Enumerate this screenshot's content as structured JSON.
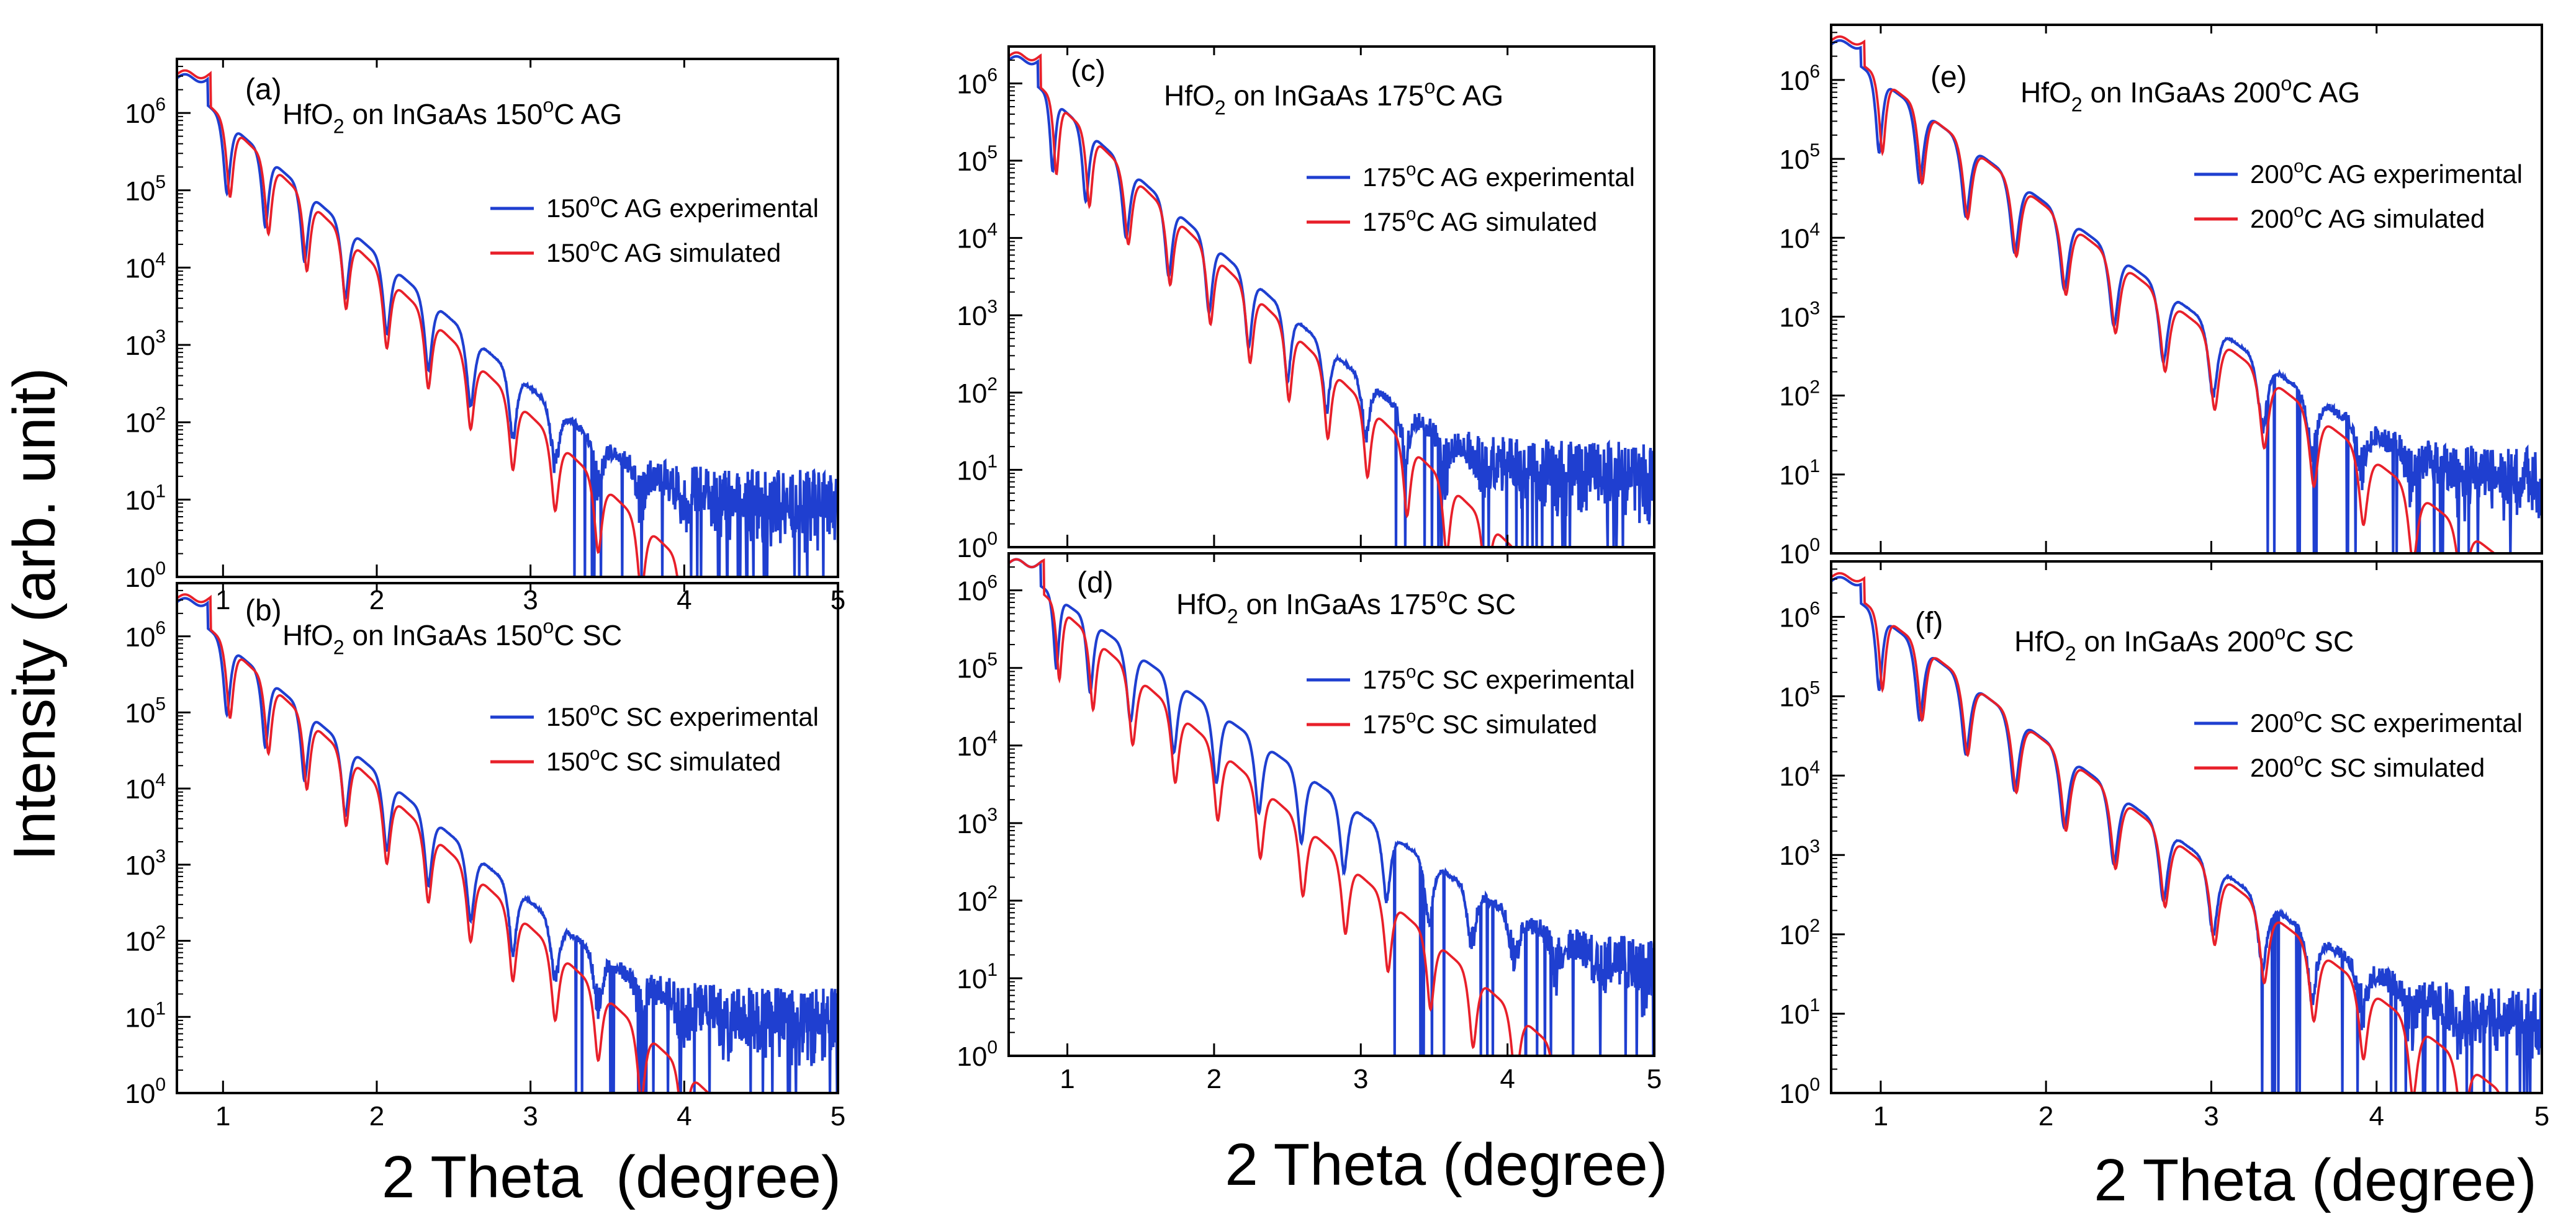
{
  "figure": {
    "ylabel": "Intensity (arb. unit)",
    "xlabel": "2 Theta  (degree)",
    "xlabel_mid": "2 Theta (degree)",
    "xlabel_right": "2 Theta (degree)",
    "colors": {
      "experimental": "#1f3fd0",
      "simulated": "#e8202a",
      "axis": "#000000"
    }
  },
  "chart_data": [
    {
      "id": "a",
      "type": "line",
      "panel_label": "(a)",
      "title": {
        "pre": "HfO",
        "sub": "2",
        "mid": " on InGaAs 150",
        "sup": "o",
        "post": "C AG"
      },
      "xlim": [
        0.7,
        5
      ],
      "ylim": [
        1,
        5000000
      ],
      "yscale": "log",
      "x_ticks": [
        "1",
        "2",
        "3",
        "4",
        "5"
      ],
      "y_ticks": [
        "10^0",
        "10^1",
        "10^2",
        "10^3",
        "10^4",
        "10^5",
        "10^6"
      ],
      "series": [
        {
          "name": {
            "pre": "150",
            "sup": "o",
            "post": "C AG experimental"
          },
          "color": "#1f3fd0",
          "peak_x": [
            0.9,
            1.15,
            1.4,
            1.66,
            1.93,
            2.2,
            2.47,
            2.75,
            3.02,
            3.3,
            3.58,
            3.86,
            4.13,
            4.41,
            4.69,
            4.96
          ],
          "start_exp": 6.45,
          "slope": 1.75,
          "noise_floor": 16
        },
        {
          "name": {
            "pre": "150",
            "sup": "o",
            "post": "C AG simulated"
          },
          "color": "#e8202a",
          "peak_x": [
            0.92,
            1.17,
            1.42,
            1.67,
            1.93,
            2.2,
            2.47,
            2.75,
            3.02,
            3.3,
            3.58,
            3.86,
            4.13,
            4.41,
            4.69,
            4.96
          ],
          "start_exp": 6.5,
          "slope": 1.92
        }
      ]
    },
    {
      "id": "b",
      "type": "line",
      "panel_label": "(b)",
      "title": {
        "pre": "HfO",
        "sub": "2",
        "mid": " on InGaAs 150",
        "sup": "o",
        "post": "C SC"
      },
      "xlim": [
        0.7,
        5
      ],
      "ylim": [
        1,
        5000000
      ],
      "yscale": "log",
      "x_ticks": [
        "1",
        "2",
        "3",
        "4",
        "5"
      ],
      "y_ticks": [
        "10^0",
        "10^1",
        "10^2",
        "10^3",
        "10^4",
        "10^5",
        "10^6"
      ],
      "series": [
        {
          "name": {
            "pre": "150",
            "sup": "o",
            "post": "C SC experimental"
          },
          "color": "#1f3fd0",
          "peak_x": [
            0.9,
            1.15,
            1.4,
            1.66,
            1.93,
            2.2,
            2.47,
            2.75,
            3.02,
            3.3,
            3.58,
            3.86,
            4.13,
            4.41,
            4.69,
            4.96
          ],
          "start_exp": 6.45,
          "slope": 1.72,
          "noise_floor": 16
        },
        {
          "name": {
            "pre": "150",
            "sup": "o",
            "post": "C SC simulated"
          },
          "color": "#e8202a",
          "peak_x": [
            0.92,
            1.17,
            1.42,
            1.67,
            1.93,
            2.2,
            2.47,
            2.75,
            3.02,
            3.3,
            3.58,
            3.86,
            4.13,
            4.41,
            4.69,
            4.96
          ],
          "start_exp": 6.5,
          "slope": 1.88
        }
      ]
    },
    {
      "id": "c",
      "type": "line",
      "panel_label": "(c)",
      "title": {
        "pre": "HfO",
        "sub": "2",
        "mid": " on InGaAs 175",
        "sup": "o",
        "post": "C AG"
      },
      "xlim": [
        0.6,
        5
      ],
      "ylim": [
        1,
        3000000
      ],
      "yscale": "log",
      "x_ticks": [],
      "y_ticks": [
        "10^0",
        "10^1",
        "10^2",
        "10^3",
        "10^4",
        "10^5",
        "10^6"
      ],
      "series": [
        {
          "name": {
            "pre": "175",
            "sup": "o",
            "post": "C AG experimental"
          },
          "color": "#1f3fd0",
          "peak_x": [
            0.8,
            1.0,
            1.25,
            1.55,
            1.83,
            2.1,
            2.37,
            2.63,
            2.9,
            3.17,
            3.44,
            3.71,
            3.98,
            4.25,
            4.52,
            4.79
          ],
          "start_exp": 6.3,
          "slope": 1.72,
          "noise_floor": 16
        },
        {
          "name": {
            "pre": "175",
            "sup": "o",
            "post": "C AG simulated"
          },
          "color": "#e8202a",
          "peak_x": [
            0.82,
            1.03,
            1.27,
            1.56,
            1.84,
            2.11,
            2.38,
            2.64,
            2.91,
            3.18,
            3.45,
            3.72,
            3.99,
            4.26,
            4.53,
            4.8
          ],
          "start_exp": 6.35,
          "slope": 1.85
        }
      ]
    },
    {
      "id": "d",
      "type": "line",
      "panel_label": "(d)",
      "title": {
        "pre": "HfO",
        "sub": "2",
        "mid": " on InGaAs 175",
        "sup": "o",
        "post": "C SC"
      },
      "xlim": [
        0.6,
        5
      ],
      "ylim": [
        1,
        3000000
      ],
      "yscale": "log",
      "x_ticks": [
        "1",
        "2",
        "3",
        "4",
        "5"
      ],
      "y_ticks": [
        "10^0",
        "10^1",
        "10^2",
        "10^3",
        "10^4",
        "10^5",
        "10^6"
      ],
      "series": [
        {
          "name": {
            "pre": "175",
            "sup": "o",
            "post": "C SC experimental"
          },
          "color": "#1f3fd0",
          "peak_x": [
            0.82,
            1.03,
            1.28,
            1.58,
            1.87,
            2.16,
            2.45,
            2.74,
            3.03,
            3.32,
            3.61,
            3.9,
            4.19,
            4.48,
            4.77
          ],
          "start_exp": 6.35,
          "slope": 1.35,
          "noise_floor": 20
        },
        {
          "name": {
            "pre": "175",
            "sup": "o",
            "post": "C SC simulated"
          },
          "color": "#e8202a",
          "peak_x": [
            0.84,
            1.05,
            1.3,
            1.59,
            1.88,
            2.17,
            2.46,
            2.75,
            3.04,
            3.33,
            3.62,
            3.91,
            4.2,
            4.49,
            4.78
          ],
          "start_exp": 6.35,
          "slope": 1.68
        }
      ]
    },
    {
      "id": "e",
      "type": "line",
      "panel_label": "(e)",
      "title": {
        "pre": "HfO",
        "sub": "2",
        "mid": " on InGaAs 200",
        "sup": "o",
        "post": "C AG"
      },
      "xlim": [
        0.7,
        5
      ],
      "ylim": [
        1,
        5000000
      ],
      "yscale": "log",
      "x_ticks": [],
      "y_ticks": [
        "10^0",
        "10^1",
        "10^2",
        "10^3",
        "10^4",
        "10^5",
        "10^6"
      ],
      "series": [
        {
          "name": {
            "pre": "200",
            "sup": "o",
            "post": "C AG experimental"
          },
          "color": "#1f3fd0",
          "peak_x": [
            0.88,
            1.1,
            1.37,
            1.66,
            1.96,
            2.26,
            2.56,
            2.86,
            3.16,
            3.46,
            3.76,
            4.06,
            4.36,
            4.66,
            4.96
          ],
          "start_exp": 6.45,
          "slope": 1.55,
          "noise_floor": 14
        },
        {
          "name": {
            "pre": "200",
            "sup": "o",
            "post": "C AG simulated"
          },
          "color": "#e8202a",
          "peak_x": [
            0.9,
            1.12,
            1.38,
            1.67,
            1.97,
            2.27,
            2.57,
            2.87,
            3.17,
            3.47,
            3.77,
            4.07,
            4.37,
            4.67,
            4.97
          ],
          "start_exp": 6.5,
          "slope": 1.62
        }
      ]
    },
    {
      "id": "f",
      "type": "line",
      "panel_label": "(f)",
      "title": {
        "pre": "HfO",
        "sub": "2",
        "mid": " on InGaAs 200",
        "sup": "o",
        "post": "C SC"
      },
      "xlim": [
        0.7,
        5
      ],
      "ylim": [
        1,
        5000000
      ],
      "yscale": "log",
      "x_ticks": [
        "1",
        "2",
        "3",
        "4",
        "5"
      ],
      "y_ticks": [
        "10^0",
        "10^1",
        "10^2",
        "10^3",
        "10^4",
        "10^5",
        "10^6"
      ],
      "series": [
        {
          "name": {
            "pre": "200",
            "sup": "o",
            "post": "C SC experimental"
          },
          "color": "#1f3fd0",
          "peak_x": [
            0.88,
            1.1,
            1.37,
            1.66,
            1.96,
            2.26,
            2.56,
            2.86,
            3.16,
            3.46,
            3.76,
            4.06,
            4.36,
            4.66,
            4.96
          ],
          "start_exp": 6.45,
          "slope": 1.55,
          "noise_floor": 14
        },
        {
          "name": {
            "pre": "200",
            "sup": "o",
            "post": "C SC simulated"
          },
          "color": "#e8202a",
          "peak_x": [
            0.9,
            1.12,
            1.38,
            1.67,
            1.97,
            2.27,
            2.57,
            2.87,
            3.17,
            3.47,
            3.77,
            4.07,
            4.37,
            4.67,
            4.97
          ],
          "start_exp": 6.5,
          "slope": 1.6
        }
      ]
    }
  ]
}
